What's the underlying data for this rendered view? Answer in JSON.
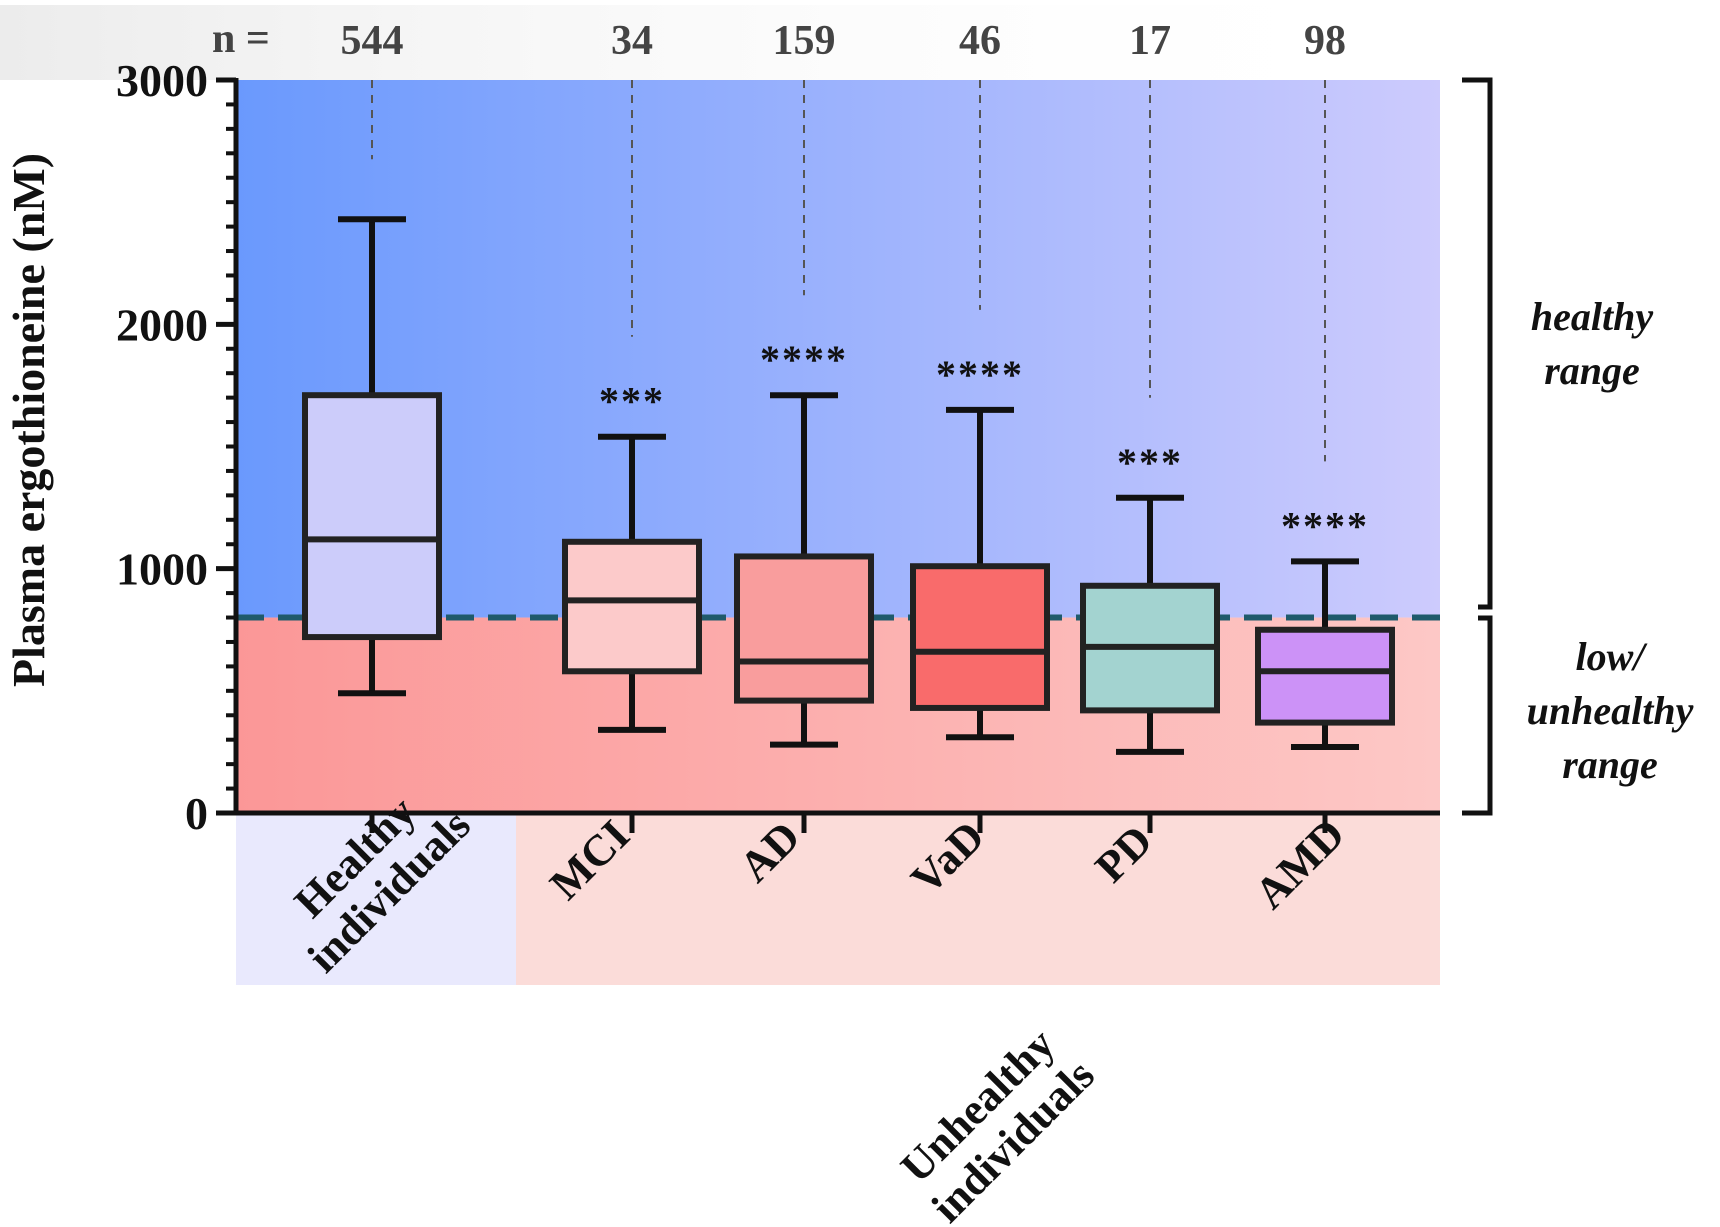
{
  "chart_data": {
    "type": "box",
    "ylabel": "Plasma ergothioneine (nM)",
    "ylim": [
      0,
      3000
    ],
    "yticks": [
      0,
      1000,
      2000,
      3000
    ],
    "threshold": 800,
    "n_prefix": "n =",
    "categories": [
      "Healthy individuals",
      "MCI",
      "AD",
      "VaD",
      "PD",
      "AMD"
    ],
    "n": [
      "544",
      "34",
      "159",
      "46",
      "17",
      "98"
    ],
    "significance": [
      "",
      "***",
      "****",
      "****",
      "***",
      "****"
    ],
    "boxes": [
      {
        "label": "Healthy individuals",
        "whisker_low": 490,
        "q1": 720,
        "median": 1120,
        "q3": 1710,
        "whisker_high": 2430,
        "color": "#ccccfa"
      },
      {
        "label": "MCI",
        "whisker_low": 340,
        "q1": 580,
        "median": 870,
        "q3": 1110,
        "whisker_high": 1540,
        "color": "#fccaca"
      },
      {
        "label": "AD",
        "whisker_low": 280,
        "q1": 460,
        "median": 620,
        "q3": 1050,
        "whisker_high": 1710,
        "color": "#f99d9d"
      },
      {
        "label": "VaD",
        "whisker_low": 310,
        "q1": 430,
        "median": 660,
        "q3": 1010,
        "whisker_high": 1650,
        "color": "#f96b6b"
      },
      {
        "label": "PD",
        "whisker_low": 250,
        "q1": 420,
        "median": 680,
        "q3": 930,
        "whisker_high": 1290,
        "color": "#a3d3d0"
      },
      {
        "label": "AMD",
        "whisker_low": 270,
        "q1": 370,
        "median": 580,
        "q3": 750,
        "whisker_high": 1030,
        "color": "#cc92f7"
      }
    ],
    "groups": [
      {
        "label_lines": [
          "Healthy",
          "individuals"
        ],
        "color": "#e9e9fd"
      },
      {
        "label_lines": [
          "Unhealthy",
          "individuals"
        ],
        "color": "#fbdcd9"
      }
    ],
    "ranges": [
      {
        "label_lines": [
          "healthy",
          "range"
        ]
      },
      {
        "label_lines": [
          "low/",
          "unhealthy",
          "range"
        ]
      }
    ],
    "colors": {
      "healthy_zone_left": "#6a99fd",
      "healthy_zone_right": "#cdcbfd",
      "unhealthy_zone_left": "#fb9797",
      "unhealthy_zone_right": "#fdc8c6",
      "threshold_line": "#1f5a6b",
      "n_band": "#ececec"
    }
  }
}
